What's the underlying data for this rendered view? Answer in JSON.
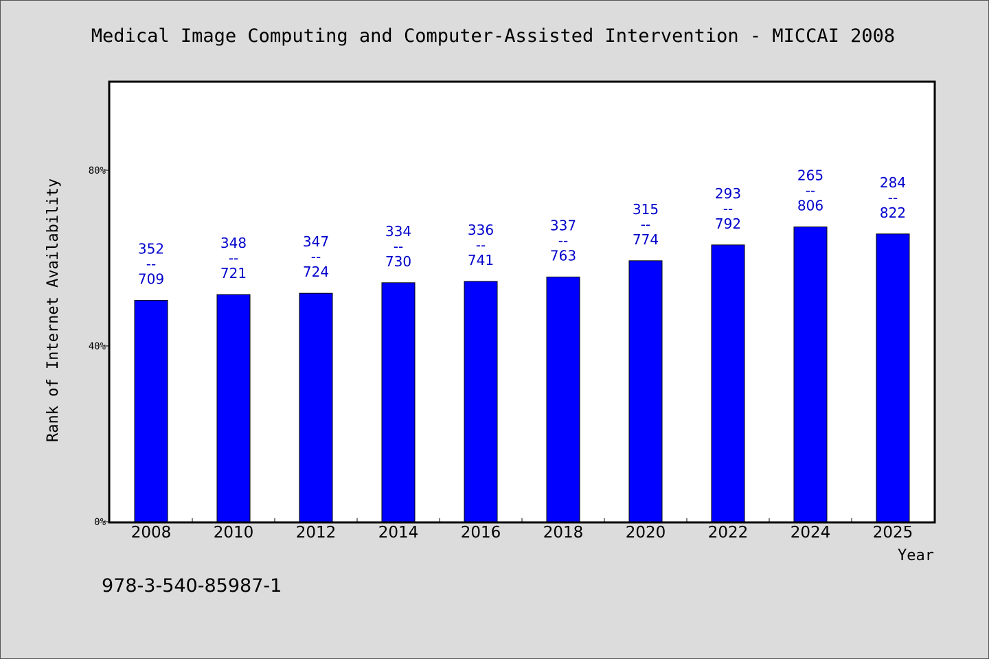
{
  "chart_data": {
    "type": "bar",
    "title": "Medical Image Computing and Computer-Assisted Intervention - MICCAI 2008",
    "xlabel": "Year",
    "ylabel": "Rank of Internet Availability",
    "ylim": [
      0,
      100
    ],
    "yticks": [
      "0%",
      "40%",
      "80%"
    ],
    "ytick_values": [
      0,
      40,
      80
    ],
    "categories": [
      "2008",
      "2010",
      "2012",
      "2014",
      "2016",
      "2018",
      "2020",
      "2022",
      "2024",
      "2025"
    ],
    "values": [
      50.4,
      51.7,
      52.0,
      54.4,
      54.7,
      55.7,
      59.4,
      63.0,
      67.1,
      65.5
    ],
    "bar_labels": [
      [
        "352",
        "--",
        "709"
      ],
      [
        "348",
        "--",
        "721"
      ],
      [
        "347",
        "--",
        "724"
      ],
      [
        "334",
        "--",
        "730"
      ],
      [
        "336",
        "--",
        "741"
      ],
      [
        "337",
        "--",
        "763"
      ],
      [
        "315",
        "--",
        "774"
      ],
      [
        "293",
        "--",
        "792"
      ],
      [
        "265",
        "--",
        "806"
      ],
      [
        "284",
        "--",
        "822"
      ]
    ],
    "bar_color": "#0000ff",
    "label_color": "#0000cc",
    "plot_background": "#ffffff",
    "page_background": "#dcdcdc",
    "grid": false
  },
  "footer": {
    "isbn": "978-3-540-85987-1"
  }
}
